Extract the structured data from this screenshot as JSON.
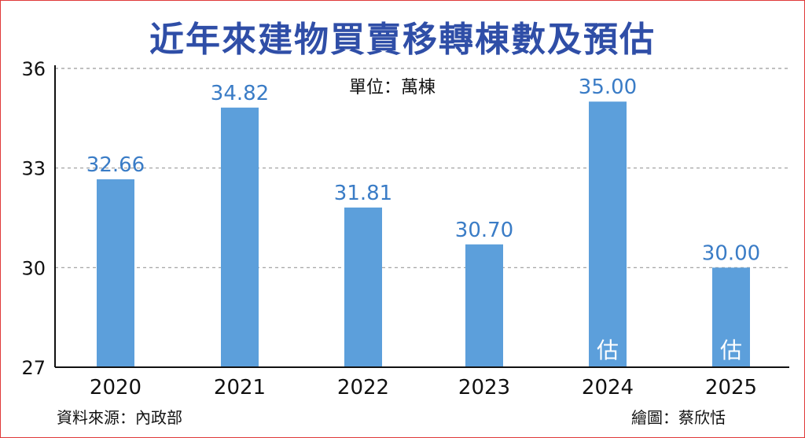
{
  "title": "近年來建物買賣移轉棟數及預估",
  "unit_label": "單位：萬棟",
  "source_label": "資料來源：內政部",
  "credit_label": "繪圖：蔡欣恬",
  "colors": {
    "bar": "#5c9fdb",
    "title": "#2f4ea7",
    "value_label": "#3a7cc6",
    "frame": "#e03a3a",
    "grid": "#9a9a9a"
  },
  "chart_data": {
    "type": "bar",
    "categories": [
      "2020",
      "2021",
      "2022",
      "2023",
      "2024",
      "2025"
    ],
    "values": [
      32.66,
      34.82,
      31.81,
      30.7,
      35.0,
      30.0
    ],
    "value_labels": [
      "32.66",
      "34.82",
      "31.81",
      "30.70",
      "35.00",
      "30.00"
    ],
    "bar_annotations": [
      "",
      "",
      "",
      "",
      "估",
      "估"
    ],
    "ylim": [
      27,
      36
    ],
    "yticks": [
      27,
      30,
      33,
      36
    ],
    "grid": true,
    "grid_style": "dashed",
    "xlabel": "",
    "ylabel": ""
  }
}
